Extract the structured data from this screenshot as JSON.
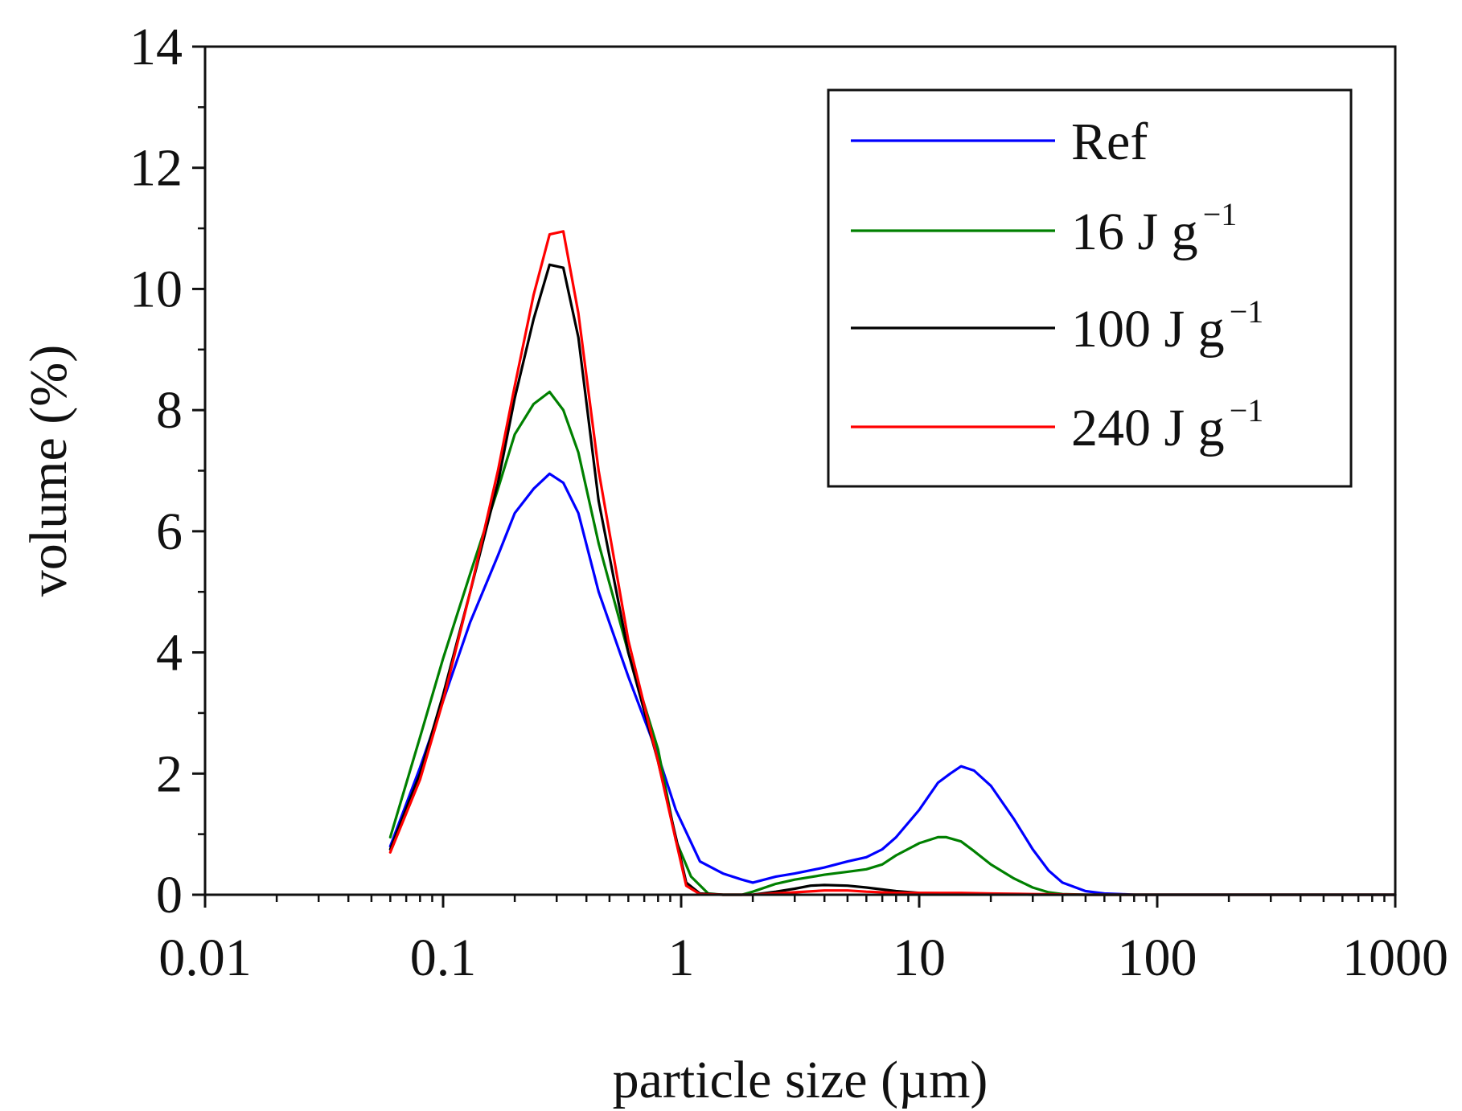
{
  "chart_data": {
    "type": "line",
    "title": "",
    "xlabel": "particle size (µm)",
    "ylabel": "volume (%)",
    "xscale": "log",
    "xlim": [
      0.01,
      1000
    ],
    "ylim": [
      0,
      14
    ],
    "xticks": [
      {
        "value": 0.01,
        "label": "0.01"
      },
      {
        "value": 0.1,
        "label": "0.1"
      },
      {
        "value": 1,
        "label": "1"
      },
      {
        "value": 10,
        "label": "10"
      },
      {
        "value": 100,
        "label": "100"
      },
      {
        "value": 1000,
        "label": "1000"
      }
    ],
    "yticks": [
      {
        "value": 0,
        "label": "0"
      },
      {
        "value": 2,
        "label": "2"
      },
      {
        "value": 4,
        "label": "4"
      },
      {
        "value": 6,
        "label": "6"
      },
      {
        "value": 8,
        "label": "8"
      },
      {
        "value": 10,
        "label": "10"
      },
      {
        "value": 12,
        "label": "12"
      },
      {
        "value": 14,
        "label": "14"
      }
    ],
    "legend_position": "top-right",
    "series": [
      {
        "name": "Ref",
        "legend_main": "Ref",
        "legend_sup": "",
        "color": "#0000ff",
        "x": [
          0.06,
          0.08,
          0.1,
          0.13,
          0.17,
          0.2,
          0.24,
          0.28,
          0.32,
          0.37,
          0.45,
          0.6,
          0.8,
          0.95,
          1.2,
          1.5,
          1.8,
          2.0,
          2.5,
          3.0,
          4.0,
          5.0,
          6.0,
          7.0,
          8.0,
          10.0,
          12.0,
          13.5,
          15.0,
          17.0,
          20.0,
          25.0,
          30.0,
          35.0,
          40.0,
          50.0,
          60.0,
          70.0,
          80.0,
          100.0,
          150.0,
          200.0,
          300.0,
          500.0,
          1000.0
        ],
        "y": [
          0.8,
          2.1,
          3.2,
          4.5,
          5.6,
          6.3,
          6.7,
          6.95,
          6.8,
          6.3,
          5.0,
          3.6,
          2.3,
          1.4,
          0.55,
          0.35,
          0.25,
          0.2,
          0.3,
          0.35,
          0.45,
          0.55,
          0.62,
          0.75,
          0.95,
          1.4,
          1.85,
          2.0,
          2.12,
          2.05,
          1.8,
          1.25,
          0.75,
          0.4,
          0.2,
          0.06,
          0.02,
          0.01,
          0.0,
          0.0,
          0.0,
          0.0,
          0.0,
          0.0,
          0.0
        ]
      },
      {
        "name": "16 J g⁻¹",
        "legend_main": "16 J g",
        "legend_sup": "−1",
        "color": "#008000",
        "x": [
          0.06,
          0.08,
          0.1,
          0.13,
          0.17,
          0.2,
          0.24,
          0.28,
          0.32,
          0.37,
          0.45,
          0.6,
          0.8,
          0.95,
          1.1,
          1.3,
          1.5,
          1.8,
          2.0,
          2.5,
          3.0,
          4.0,
          5.0,
          6.0,
          7.0,
          8.0,
          10.0,
          12.0,
          13.0,
          15.0,
          17.0,
          20.0,
          25.0,
          30.0,
          35.0,
          40.0,
          50.0,
          60.0,
          100.0,
          1000.0
        ],
        "y": [
          0.95,
          2.6,
          3.9,
          5.3,
          6.7,
          7.6,
          8.1,
          8.3,
          8.0,
          7.3,
          5.8,
          4.0,
          2.4,
          0.9,
          0.3,
          0.02,
          0.0,
          0.0,
          0.05,
          0.18,
          0.25,
          0.33,
          0.38,
          0.42,
          0.5,
          0.65,
          0.85,
          0.95,
          0.95,
          0.88,
          0.72,
          0.5,
          0.27,
          0.12,
          0.04,
          0.01,
          0.0,
          0.0,
          0.0,
          0.0
        ]
      },
      {
        "name": "100 J g⁻¹",
        "legend_main": "100 J g",
        "legend_sup": "−1",
        "color": "#000000",
        "x": [
          0.06,
          0.08,
          0.1,
          0.13,
          0.17,
          0.2,
          0.24,
          0.28,
          0.32,
          0.37,
          0.45,
          0.6,
          0.8,
          0.95,
          1.05,
          1.2,
          1.5,
          2.0,
          2.5,
          3.0,
          3.5,
          4.0,
          5.0,
          6.0,
          8.0,
          10.0,
          15.0,
          20.0,
          30.0,
          50.0,
          100.0,
          1000.0
        ],
        "y": [
          0.75,
          2.0,
          3.3,
          5.0,
          6.8,
          8.2,
          9.5,
          10.4,
          10.35,
          9.2,
          6.5,
          4.0,
          2.2,
          0.95,
          0.2,
          0.02,
          0.0,
          0.0,
          0.05,
          0.1,
          0.15,
          0.16,
          0.15,
          0.12,
          0.06,
          0.03,
          0.02,
          0.01,
          0.0,
          0.0,
          0.0,
          0.0
        ]
      },
      {
        "name": "240 J g⁻¹",
        "legend_main": "240 J g",
        "legend_sup": "−1",
        "color": "#ff0000",
        "x": [
          0.06,
          0.08,
          0.1,
          0.13,
          0.17,
          0.2,
          0.24,
          0.28,
          0.32,
          0.37,
          0.45,
          0.6,
          0.8,
          0.95,
          1.05,
          1.2,
          1.5,
          2.0,
          3.0,
          4.0,
          5.0,
          6.0,
          8.0,
          10.0,
          15.0,
          20.0,
          30.0,
          50.0,
          100.0,
          1000.0
        ],
        "y": [
          0.7,
          1.9,
          3.2,
          5.0,
          7.0,
          8.4,
          9.9,
          10.9,
          10.95,
          9.6,
          7.0,
          4.2,
          2.2,
          0.9,
          0.15,
          0.01,
          0.0,
          0.0,
          0.04,
          0.07,
          0.07,
          0.05,
          0.03,
          0.03,
          0.03,
          0.02,
          0.01,
          0.0,
          0.0,
          0.0
        ]
      }
    ]
  }
}
